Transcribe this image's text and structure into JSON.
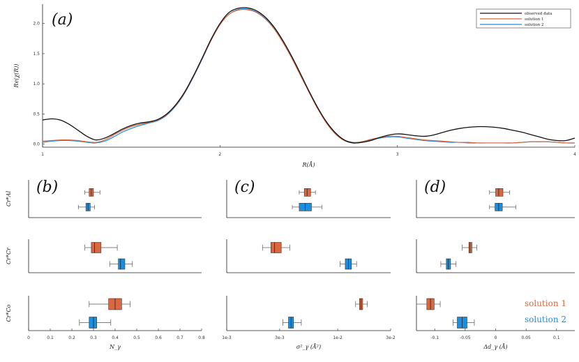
{
  "colors": {
    "observed": "#111111",
    "solution1": "#d9673f",
    "solution2": "#1a8fe0",
    "axis": "#222222"
  },
  "chart_data": [
    {
      "id": "a",
      "type": "line",
      "panel_label": "(a)",
      "xlabel": "R(Å)",
      "ylabel": "Re(χ(R))",
      "xlim": [
        1,
        4
      ],
      "ylim": [
        -0.05,
        2.32
      ],
      "xticks": [
        "1",
        "2",
        "3",
        "4"
      ],
      "yticks": [
        "0.0",
        "0.5",
        "1.0",
        "1.5",
        "2.0"
      ],
      "legend_position": "top-right",
      "series": [
        {
          "name": "observed data",
          "x": [
            1.0,
            1.05,
            1.1,
            1.15,
            1.2,
            1.25,
            1.3,
            1.35,
            1.4,
            1.45,
            1.5,
            1.55,
            1.6,
            1.65,
            1.7,
            1.75,
            1.8,
            1.85,
            1.9,
            1.95,
            2.0,
            2.05,
            2.1,
            2.15,
            2.2,
            2.25,
            2.3,
            2.35,
            2.4,
            2.45,
            2.5,
            2.55,
            2.6,
            2.65,
            2.7,
            2.75,
            2.8,
            2.85,
            2.9,
            2.95,
            3.0,
            3.05,
            3.1,
            3.15,
            3.2,
            3.25,
            3.3,
            3.35,
            3.4,
            3.45,
            3.5,
            3.55,
            3.6,
            3.65,
            3.7,
            3.75,
            3.8,
            3.85,
            3.9,
            3.95,
            4.0
          ],
          "y": [
            0.4,
            0.42,
            0.4,
            0.33,
            0.23,
            0.13,
            0.07,
            0.1,
            0.17,
            0.25,
            0.31,
            0.35,
            0.37,
            0.41,
            0.5,
            0.65,
            0.86,
            1.13,
            1.43,
            1.74,
            2.0,
            2.18,
            2.25,
            2.26,
            2.22,
            2.12,
            1.96,
            1.74,
            1.48,
            1.19,
            0.89,
            0.61,
            0.37,
            0.19,
            0.07,
            0.02,
            0.03,
            0.06,
            0.11,
            0.15,
            0.17,
            0.16,
            0.14,
            0.13,
            0.15,
            0.19,
            0.23,
            0.26,
            0.28,
            0.29,
            0.29,
            0.28,
            0.26,
            0.23,
            0.2,
            0.16,
            0.12,
            0.08,
            0.06,
            0.06,
            0.1
          ]
        },
        {
          "name": "solution 1",
          "x": [
            1.0,
            1.05,
            1.1,
            1.15,
            1.2,
            1.25,
            1.3,
            1.35,
            1.4,
            1.45,
            1.5,
            1.55,
            1.6,
            1.65,
            1.7,
            1.75,
            1.8,
            1.85,
            1.9,
            1.95,
            2.0,
            2.05,
            2.1,
            2.15,
            2.2,
            2.25,
            2.3,
            2.35,
            2.4,
            2.45,
            2.5,
            2.55,
            2.6,
            2.65,
            2.7,
            2.75,
            2.8,
            2.85,
            2.9,
            2.95,
            3.0,
            3.05,
            3.1,
            3.15,
            3.2,
            3.25,
            3.3,
            3.35,
            3.4,
            3.45,
            3.5,
            3.55,
            3.6,
            3.65,
            3.7,
            3.75,
            3.8,
            3.85,
            3.9,
            3.95,
            4.0
          ],
          "y": [
            0.05,
            0.06,
            0.07,
            0.07,
            0.06,
            0.04,
            0.03,
            0.07,
            0.15,
            0.23,
            0.29,
            0.33,
            0.36,
            0.4,
            0.49,
            0.64,
            0.85,
            1.12,
            1.42,
            1.72,
            1.98,
            2.15,
            2.22,
            2.23,
            2.19,
            2.09,
            1.93,
            1.71,
            1.45,
            1.16,
            0.87,
            0.59,
            0.35,
            0.17,
            0.06,
            0.02,
            0.04,
            0.08,
            0.11,
            0.13,
            0.13,
            0.11,
            0.09,
            0.07,
            0.06,
            0.05,
            0.04,
            0.03,
            0.03,
            0.02,
            0.02,
            0.02,
            0.02,
            0.02,
            0.03,
            0.04,
            0.04,
            0.04,
            0.03,
            0.02,
            0.02
          ]
        },
        {
          "name": "solution 2",
          "x": [
            1.0,
            1.05,
            1.1,
            1.15,
            1.2,
            1.25,
            1.3,
            1.35,
            1.4,
            1.45,
            1.5,
            1.55,
            1.6,
            1.65,
            1.7,
            1.75,
            1.8,
            1.85,
            1.9,
            1.95,
            2.0,
            2.05,
            2.1,
            2.15,
            2.2,
            2.25,
            2.3,
            2.35,
            2.4,
            2.45,
            2.5,
            2.55,
            2.6,
            2.65,
            2.7,
            2.75,
            2.8,
            2.85,
            2.9,
            2.95,
            3.0,
            3.05,
            3.1,
            3.15,
            3.2,
            3.25,
            3.3,
            3.35,
            3.4,
            3.45,
            3.5,
            3.55,
            3.6,
            3.65,
            3.7,
            3.75,
            3.8,
            3.85,
            3.9,
            3.95,
            4.0
          ],
          "y": [
            0.03,
            0.05,
            0.06,
            0.06,
            0.05,
            0.03,
            0.02,
            0.05,
            0.12,
            0.2,
            0.26,
            0.31,
            0.35,
            0.39,
            0.48,
            0.63,
            0.84,
            1.11,
            1.41,
            1.72,
            1.98,
            2.15,
            2.23,
            2.24,
            2.2,
            2.1,
            1.94,
            1.72,
            1.46,
            1.17,
            0.88,
            0.6,
            0.36,
            0.18,
            0.07,
            0.03,
            0.04,
            0.07,
            0.1,
            0.12,
            0.12,
            0.1,
            0.08,
            0.06,
            0.05,
            0.04,
            0.03,
            0.03,
            0.02,
            0.02,
            0.02,
            0.02,
            0.02,
            0.02,
            0.03,
            0.04,
            0.04,
            0.04,
            0.03,
            0.02,
            0.02
          ]
        }
      ]
    },
    {
      "id": "b",
      "type": "box",
      "panel_label": "(b)",
      "xlabel": "N_γ",
      "xscale": "linear",
      "xlim": [
        0,
        0.8
      ],
      "xticks": [
        "0",
        "0.1",
        "0.2",
        "0.3",
        "0.4",
        "0.5",
        "0.6",
        "0.7",
        "0.8"
      ],
      "rows": [
        {
          "label": "Cr*Al",
          "boxes": [
            {
              "series": "solution 1",
              "whisker_low": 0.26,
              "q1": 0.28,
              "median": 0.29,
              "q3": 0.3,
              "whisker_high": 0.33
            },
            {
              "series": "solution 2",
              "whisker_low": 0.23,
              "q1": 0.265,
              "median": 0.275,
              "q3": 0.285,
              "whisker_high": 0.305
            }
          ]
        },
        {
          "label": "Cr*Cr",
          "boxes": [
            {
              "series": "solution 1",
              "whisker_low": 0.26,
              "q1": 0.29,
              "median": 0.305,
              "q3": 0.335,
              "whisker_high": 0.41
            },
            {
              "series": "solution 2",
              "whisker_low": 0.375,
              "q1": 0.415,
              "median": 0.425,
              "q3": 0.445,
              "whisker_high": 0.48
            }
          ]
        },
        {
          "label": "Cr*Co",
          "boxes": [
            {
              "series": "solution 1",
              "whisker_low": 0.28,
              "q1": 0.37,
              "median": 0.4,
              "q3": 0.43,
              "whisker_high": 0.47
            },
            {
              "series": "solution 2",
              "whisker_low": 0.235,
              "q1": 0.28,
              "median": 0.3,
              "q3": 0.315,
              "whisker_high": 0.38
            }
          ]
        }
      ]
    },
    {
      "id": "c",
      "type": "box",
      "panel_label": "(c)",
      "xlabel": "σ²_γ (Å²)",
      "xscale": "log",
      "xlim": [
        0.001,
        0.03
      ],
      "xticks": [
        "1e-3",
        "3e-3",
        "1e-2",
        "3e-2"
      ],
      "xtick_values": [
        0.001,
        0.003,
        0.01,
        0.03
      ],
      "rows": [
        {
          "label": "Cr*Al",
          "boxes": [
            {
              "series": "solution 1",
              "whisker_low": 0.0045,
              "q1": 0.005,
              "median": 0.0053,
              "q3": 0.0057,
              "whisker_high": 0.0063
            },
            {
              "series": "solution 2",
              "whisker_low": 0.0039,
              "q1": 0.0045,
              "median": 0.0051,
              "q3": 0.0058,
              "whisker_high": 0.0072
            }
          ]
        },
        {
          "label": "Cr*Cr",
          "boxes": [
            {
              "series": "solution 1",
              "whisker_low": 0.0021,
              "q1": 0.0025,
              "median": 0.0027,
              "q3": 0.0031,
              "whisker_high": 0.0037
            },
            {
              "series": "solution 2",
              "whisker_low": 0.0105,
              "q1": 0.0117,
              "median": 0.0125,
              "q3": 0.0133,
              "whisker_high": 0.0148
            }
          ]
        },
        {
          "label": "Cr*Co",
          "boxes": [
            {
              "series": "solution 1",
              "whisker_low": 0.0145,
              "q1": 0.0157,
              "median": 0.0162,
              "q3": 0.0168,
              "whisker_high": 0.0185
            },
            {
              "series": "solution 2",
              "whisker_low": 0.0032,
              "q1": 0.0036,
              "median": 0.0038,
              "q3": 0.004,
              "whisker_high": 0.0047
            }
          ]
        }
      ]
    },
    {
      "id": "d",
      "type": "box",
      "panel_label": "(d)",
      "xlabel": "Δd_γ (Å)",
      "xscale": "linear",
      "xlim": [
        -0.13,
        0.13
      ],
      "xticks": [
        "-0.1",
        "-0.05",
        "0",
        "0.05",
        "0.1"
      ],
      "xtick_values": [
        -0.1,
        -0.05,
        0,
        0.05,
        0.1
      ],
      "rows": [
        {
          "label": "Cr*Al",
          "boxes": [
            {
              "series": "solution 1",
              "whisker_low": -0.01,
              "q1": 0.0,
              "median": 0.005,
              "q3": 0.012,
              "whisker_high": 0.023
            },
            {
              "series": "solution 2",
              "whisker_low": -0.01,
              "q1": -0.001,
              "median": 0.005,
              "q3": 0.011,
              "whisker_high": 0.033
            }
          ]
        },
        {
          "label": "Cr*Cr",
          "boxes": [
            {
              "series": "solution 1",
              "whisker_low": -0.055,
              "q1": -0.044,
              "median": -0.042,
              "q3": -0.039,
              "whisker_high": -0.031
            },
            {
              "series": "solution 2",
              "whisker_low": -0.09,
              "q1": -0.081,
              "median": -0.078,
              "q3": -0.074,
              "whisker_high": -0.065
            }
          ]
        },
        {
          "label": "Cr*Co",
          "boxes": [
            {
              "series": "solution 1",
              "whisker_low": -0.13,
              "q1": -0.113,
              "median": -0.107,
              "q3": -0.101,
              "whisker_high": -0.091
            },
            {
              "series": "solution 2",
              "whisker_low": -0.07,
              "q1": -0.063,
              "median": -0.055,
              "q3": -0.047,
              "whisker_high": -0.035
            }
          ]
        }
      ]
    }
  ],
  "legend": {
    "entries": [
      "observed data",
      "solution 1",
      "solution 2"
    ]
  },
  "row_labels": [
    "Cr*Al",
    "Cr*Cr",
    "Cr*Co"
  ],
  "solution_labels": {
    "solution1": "solution 1",
    "solution2": "solution 2"
  }
}
